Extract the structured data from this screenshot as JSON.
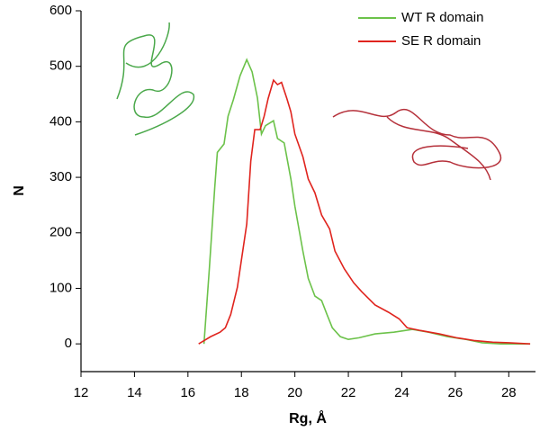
{
  "chart_data": {
    "type": "line",
    "x_label": "Rg, Å",
    "y_label": "N",
    "xlim": [
      12,
      29
    ],
    "ylim": [
      -50,
      600
    ],
    "xticks": [
      12,
      14,
      16,
      18,
      20,
      22,
      24,
      26,
      28
    ],
    "yticks": [
      0,
      100,
      200,
      300,
      400,
      500,
      600
    ],
    "legend": "upper-right",
    "series": [
      {
        "name": "WT R domain",
        "color": "#6cc24a",
        "x": [
          16.6,
          16.8,
          17.0,
          17.1,
          17.35,
          17.5,
          17.7,
          17.95,
          18.2,
          18.4,
          18.6,
          18.75,
          18.9,
          19.2,
          19.35,
          19.6,
          19.85,
          20.0,
          20.3,
          20.5,
          20.75,
          21.0,
          21.2,
          21.4,
          21.7,
          22.0,
          22.4,
          23.0,
          23.7,
          24.4,
          25.0,
          25.7,
          26.4,
          27.0,
          27.7,
          28.8
        ],
        "values": [
          0,
          135,
          280,
          345,
          360,
          410,
          440,
          483,
          512,
          490,
          443,
          378,
          393,
          402,
          370,
          362,
          297,
          248,
          167,
          118,
          86,
          78,
          53,
          29,
          13,
          8,
          11,
          18,
          21,
          26,
          21,
          13,
          8,
          2,
          0,
          0
        ]
      },
      {
        "name": "SE R domain",
        "color": "#e0241e",
        "x": [
          16.4,
          16.85,
          17.2,
          17.4,
          17.6,
          17.85,
          18.0,
          18.2,
          18.35,
          18.5,
          18.7,
          18.85,
          19.0,
          19.2,
          19.35,
          19.5,
          19.7,
          19.85,
          20.0,
          20.3,
          20.5,
          20.75,
          21.0,
          21.3,
          21.5,
          21.85,
          22.2,
          22.5,
          23.0,
          23.5,
          23.9,
          24.2,
          24.7,
          25.4,
          26.05,
          26.7,
          27.4,
          28.0,
          28.8
        ],
        "values": [
          0,
          13,
          21,
          29,
          53,
          102,
          151,
          216,
          329,
          386,
          386,
          410,
          442,
          475,
          467,
          471,
          442,
          418,
          378,
          337,
          297,
          272,
          232,
          207,
          167,
          135,
          110,
          94,
          70,
          57,
          45,
          29,
          24,
          18,
          11,
          6,
          3,
          2,
          0
        ]
      }
    ]
  }
}
